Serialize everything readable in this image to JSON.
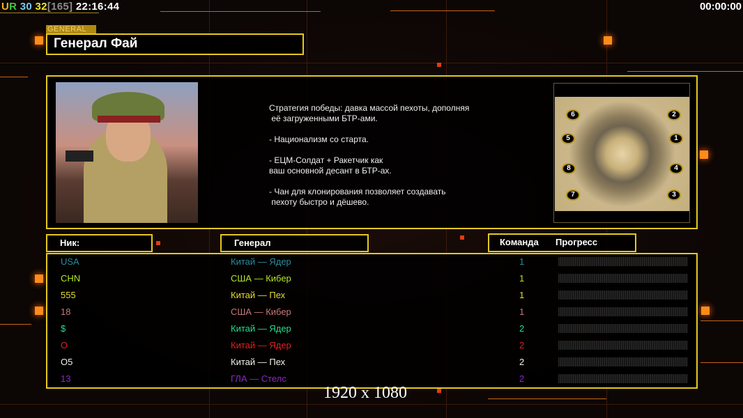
{
  "hud": {
    "prefix": "UR",
    "n1": "30",
    "n2": "32",
    "bracket": "[165]",
    "clock": "22:16:44",
    "timer": "00:00:00",
    "colors": {
      "U": "#f0b41e",
      "R": "#3cc83c",
      "n1": "#78c8f0",
      "n2": "#f0e628",
      "bracket": "#8c8c8c"
    }
  },
  "general_tab": "GENERAL",
  "general_name": "Генерал Фай",
  "description": "Стратегия победы: давка массой пехоты, дополняя\n её загруженными БТР-ами.\n\n- Национализм со старта.\n\n- ЕЦМ-Солдат + Ракетчик как\nваш основной десант в БТР-ах.\n\n- Чан для клонирования позволяет создавать\n пехоту быстро и дёшево.",
  "map": {
    "start_positions": [
      "6",
      "2",
      "5",
      "1",
      "8",
      "4",
      "7",
      "3"
    ]
  },
  "table": {
    "headers": {
      "nick": "Ник:",
      "general": "Генерал",
      "team": "Команда",
      "progress": "Прогресс"
    },
    "rows": [
      {
        "nick": "USA",
        "general": "Китай — Ядер",
        "team": "1",
        "color": "#2a8c9c",
        "progress": 0
      },
      {
        "nick": "CHN",
        "general": "США — Кибер",
        "team": "1",
        "color": "#b4e628",
        "progress": 0
      },
      {
        "nick": "555",
        "general": "Китай — Пех",
        "team": "1",
        "color": "#e6dc32",
        "progress": 0
      },
      {
        "nick": "18",
        "general": "США — Кибер",
        "team": "1",
        "color": "#c87878",
        "progress": 0
      },
      {
        "nick": "$",
        "general": "Китай — Ядер",
        "team": "2",
        "color": "#28dc8c",
        "progress": 0
      },
      {
        "nick": "O",
        "general": "Китай — Ядер",
        "team": "2",
        "color": "#e61e1e",
        "progress": 0
      },
      {
        "nick": "O5",
        "general": "Китай — Пех",
        "team": "2",
        "color": "#f0f0f0",
        "progress": 0
      },
      {
        "nick": "13",
        "general": "ГЛА — Стелс",
        "team": "2",
        "color": "#8c28c8",
        "progress": 0
      }
    ]
  },
  "resolution": "1920 x 1080"
}
